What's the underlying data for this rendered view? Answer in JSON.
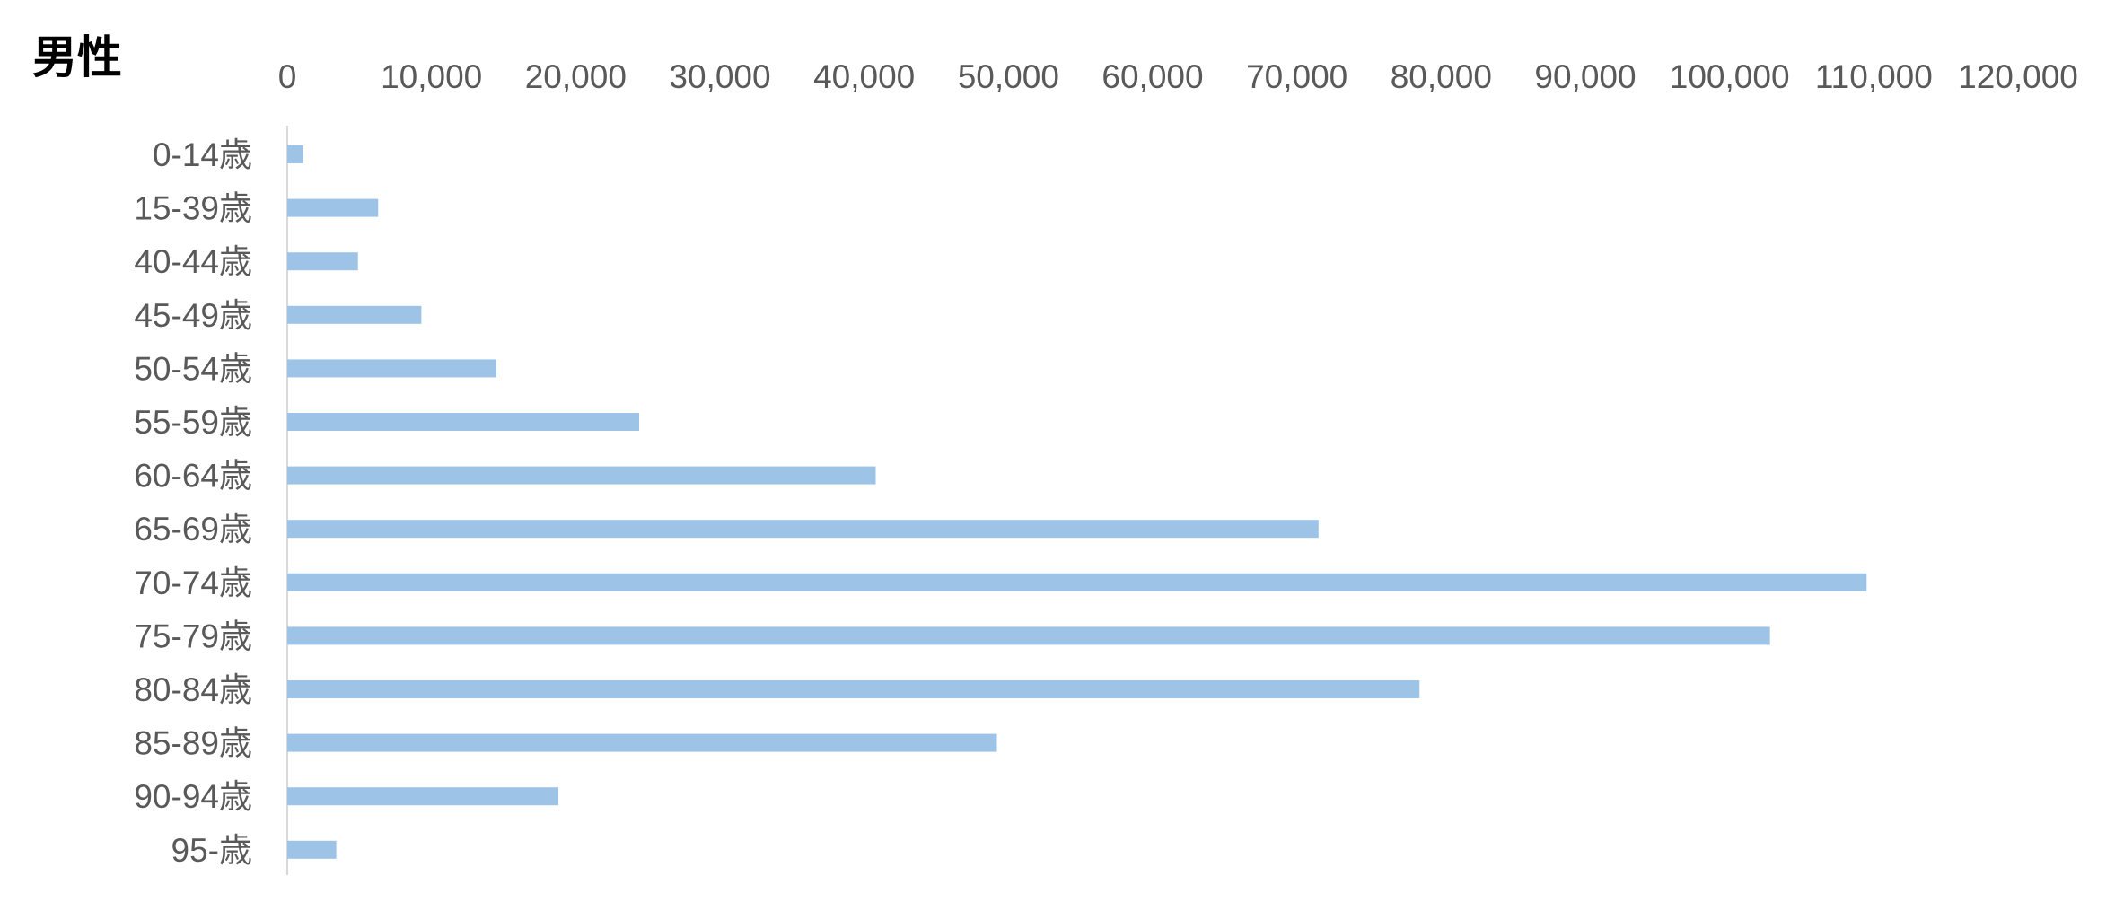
{
  "chart_data": {
    "type": "bar",
    "orientation": "horizontal",
    "title": "男性",
    "xlabel": "",
    "ylabel": "",
    "xlim": [
      0,
      120000
    ],
    "xtick_values": [
      0,
      10000,
      20000,
      30000,
      40000,
      50000,
      60000,
      70000,
      80000,
      90000,
      100000,
      110000,
      120000
    ],
    "xtick_labels": [
      "0",
      "10,000",
      "20,000",
      "30,000",
      "40,000",
      "50,000",
      "60,000",
      "70,000",
      "80,000",
      "90,000",
      "100,000",
      "110,000",
      "120,000"
    ],
    "x_axis_position": "top",
    "categories": [
      "0-14歳",
      "15-39歳",
      "40-44歳",
      "45-49歳",
      "50-54歳",
      "55-59歳",
      "60-64歳",
      "65-69歳",
      "70-74歳",
      "75-79歳",
      "80-84歳",
      "85-89歳",
      "90-94歳",
      "95-歳"
    ],
    "values": [
      1100,
      6300,
      4900,
      9300,
      14500,
      24400,
      40800,
      71500,
      109500,
      102800,
      78500,
      49200,
      18800,
      3400
    ],
    "bar_color": "#9dc3e6",
    "grid": false,
    "legend": "none"
  }
}
